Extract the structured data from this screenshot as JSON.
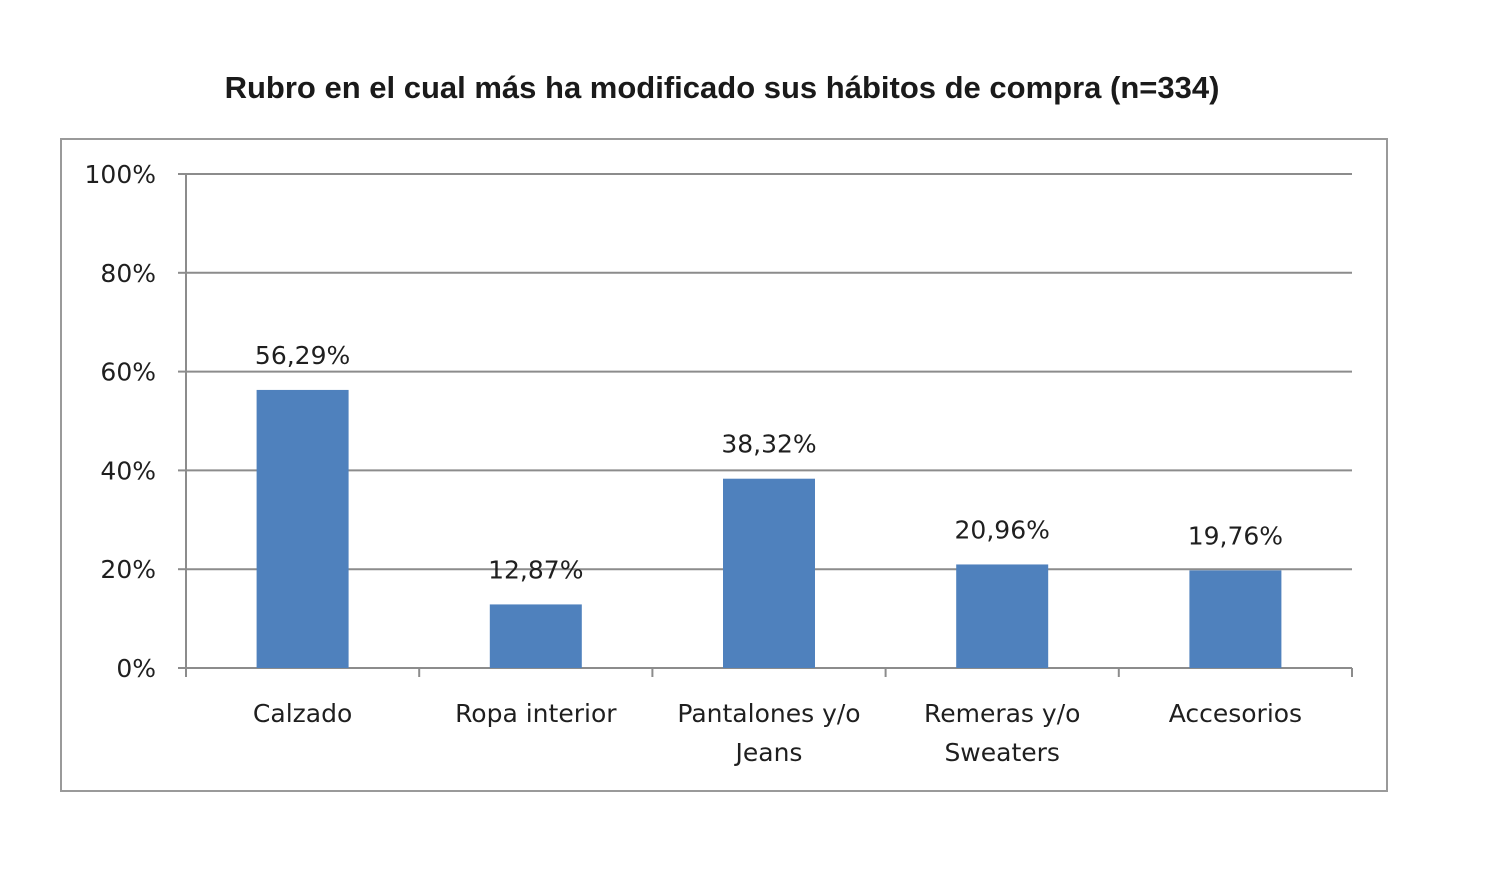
{
  "chart_data": {
    "type": "bar",
    "title": "Rubro en el cual más ha modificado sus hábitos de compra (n=334)",
    "xlabel": "",
    "ylabel": "",
    "categories": [
      [
        "Calzado"
      ],
      [
        "Ropa interior"
      ],
      [
        "Pantalones y/o",
        "Jeans"
      ],
      [
        "Remeras y/o",
        "Sweaters"
      ],
      [
        "Accesorios"
      ]
    ],
    "values": [
      56.29,
      12.87,
      38.32,
      20.96,
      19.76
    ],
    "data_labels": [
      "56,29%",
      "12,87%",
      "38,32%",
      "20,96%",
      "19,76%"
    ],
    "ylim": [
      0,
      100
    ],
    "yticks": [
      0,
      20,
      40,
      60,
      80,
      100
    ],
    "ytick_labels": [
      "0%",
      "20%",
      "40%",
      "60%",
      "80%",
      "100%"
    ],
    "grid": true,
    "legend": "none",
    "colors": {
      "bar": "#4f81bd",
      "grid": "#8c8c8c",
      "axis": "#8c8c8c",
      "text": "#1f1f1f"
    }
  }
}
